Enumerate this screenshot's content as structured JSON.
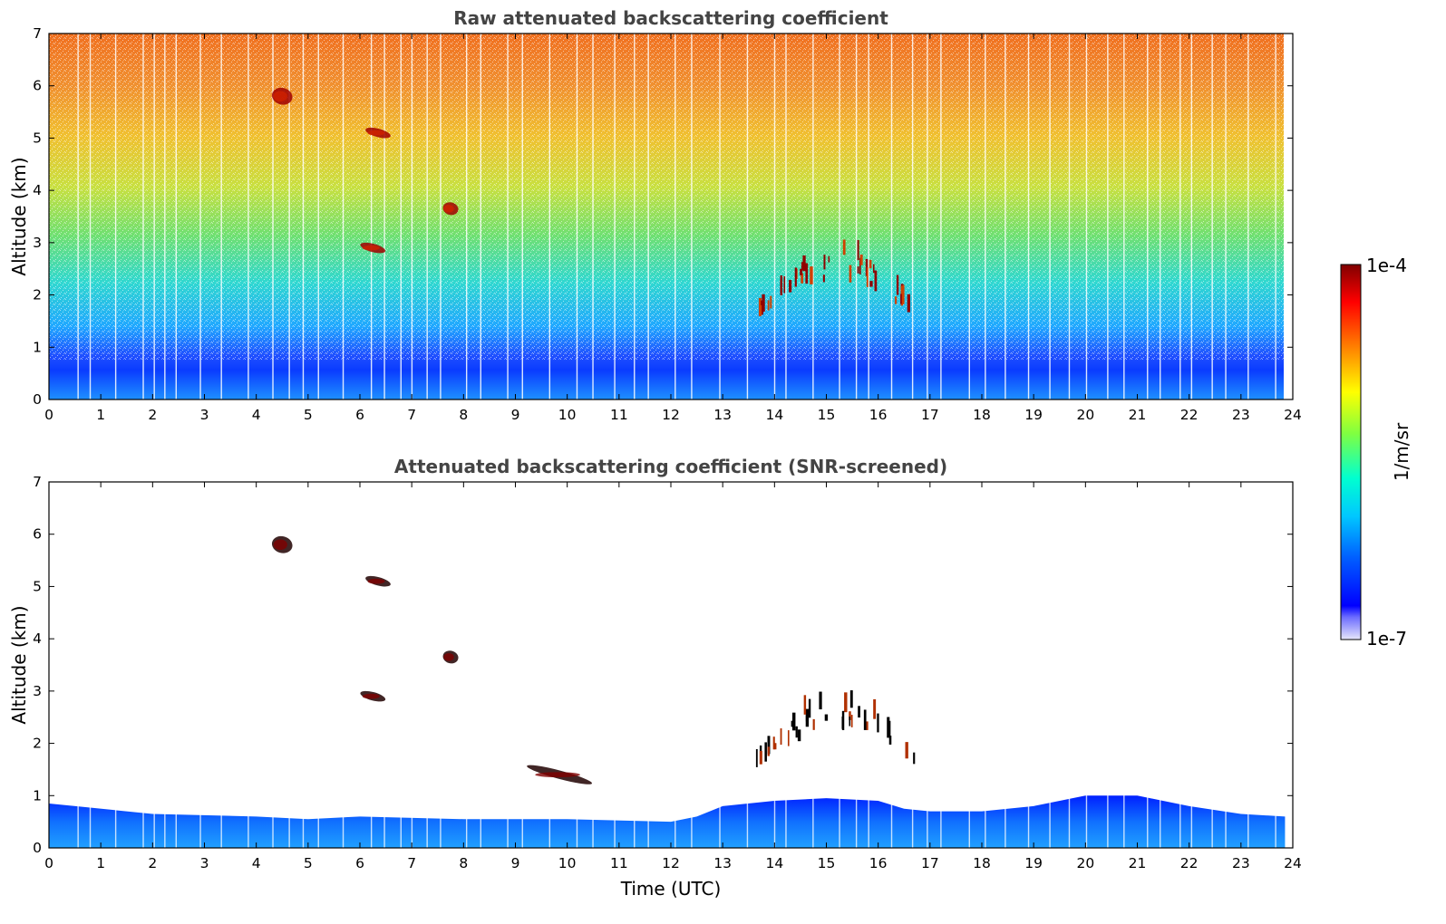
{
  "chart_data": [
    {
      "type": "heatmap",
      "title": "Raw attenuated backscattering coefficient",
      "xlabel": "",
      "ylabel": "Altitude (km)",
      "xlim": [
        0,
        24
      ],
      "ylim": [
        0,
        7
      ],
      "x_ticks": [
        "0",
        "1",
        "2",
        "3",
        "4",
        "5",
        "6",
        "7",
        "8",
        "9",
        "10",
        "11",
        "12",
        "13",
        "14",
        "15",
        "16",
        "17",
        "18",
        "19",
        "20",
        "21",
        "22",
        "23",
        "24"
      ],
      "y_ticks": [
        "0",
        "1",
        "2",
        "3",
        "4",
        "5",
        "6",
        "7"
      ],
      "color_scale": "log",
      "features": [
        {
          "kind": "noise_background",
          "altitude_km": [
            0.7,
            7
          ],
          "time_utc": [
            0,
            23.85
          ]
        },
        {
          "kind": "aerosol_layer",
          "altitude_km": [
            0,
            0.6
          ],
          "time_utc": [
            0,
            23.85
          ]
        },
        {
          "kind": "cloud",
          "time_utc": [
            4.3,
            4.7
          ],
          "altitude_km": [
            5.6,
            6.0
          ]
        },
        {
          "kind": "cloud",
          "time_utc": [
            6.1,
            6.6
          ],
          "altitude_km": [
            5.0,
            5.2
          ]
        },
        {
          "kind": "cloud",
          "time_utc": [
            7.6,
            7.9
          ],
          "altitude_km": [
            3.5,
            3.8
          ]
        },
        {
          "kind": "cloud",
          "time_utc": [
            6.0,
            6.5
          ],
          "altitude_km": [
            2.8,
            3.0
          ]
        },
        {
          "kind": "cloud_field",
          "time_utc": [
            13.6,
            16.8
          ],
          "altitude_km": [
            1.5,
            2.8
          ]
        }
      ]
    },
    {
      "type": "heatmap",
      "title": "Attenuated backscattering coefficient (SNR-screened)",
      "xlabel": "Time (UTC)",
      "ylabel": "Altitude (km)",
      "xlim": [
        0,
        24
      ],
      "ylim": [
        0,
        7
      ],
      "x_ticks": [
        "0",
        "1",
        "2",
        "3",
        "4",
        "5",
        "6",
        "7",
        "8",
        "9",
        "10",
        "11",
        "12",
        "13",
        "14",
        "15",
        "16",
        "17",
        "18",
        "19",
        "20",
        "21",
        "22",
        "23",
        "24"
      ],
      "y_ticks": [
        "0",
        "1",
        "2",
        "3",
        "4",
        "5",
        "6",
        "7"
      ],
      "color_scale": "log",
      "boundary_layer_top_km": {
        "time_utc": [
          0,
          2,
          4,
          5,
          6,
          8,
          10,
          12,
          12.5,
          13,
          14,
          15,
          16,
          16.5,
          17,
          18,
          19,
          20,
          21,
          22,
          23,
          23.85
        ],
        "altitude_km": [
          0.85,
          0.65,
          0.6,
          0.55,
          0.6,
          0.55,
          0.55,
          0.5,
          0.6,
          0.8,
          0.9,
          0.95,
          0.9,
          0.75,
          0.7,
          0.7,
          0.8,
          1.0,
          1.0,
          0.8,
          0.65,
          0.6
        ]
      },
      "features": [
        {
          "kind": "cloud",
          "time_utc": [
            4.3,
            4.7
          ],
          "altitude_km": [
            5.6,
            6.0
          ]
        },
        {
          "kind": "cloud",
          "time_utc": [
            6.1,
            6.6
          ],
          "altitude_km": [
            5.0,
            5.2
          ]
        },
        {
          "kind": "cloud",
          "time_utc": [
            7.6,
            7.9
          ],
          "altitude_km": [
            3.5,
            3.8
          ]
        },
        {
          "kind": "cloud",
          "time_utc": [
            6.0,
            6.5
          ],
          "altitude_km": [
            2.8,
            3.0
          ]
        },
        {
          "kind": "cloud",
          "time_utc": [
            9.2,
            10.5
          ],
          "altitude_km": [
            1.3,
            1.5
          ]
        },
        {
          "kind": "cloud_field",
          "time_utc": [
            13.6,
            16.8
          ],
          "altitude_km": [
            1.5,
            2.8
          ]
        }
      ]
    }
  ],
  "colorbar": {
    "label": "1/m/sr",
    "max_label": "1e-4",
    "min_label": "1e-7",
    "vmin": 1e-07,
    "vmax": 0.0001,
    "colormap": "jet",
    "colors": [
      "#e8e8f8",
      "#0000ff",
      "#00bfff",
      "#00ffd5",
      "#7fff00",
      "#ffff00",
      "#ff7f00",
      "#ff0000",
      "#8b0000"
    ]
  }
}
